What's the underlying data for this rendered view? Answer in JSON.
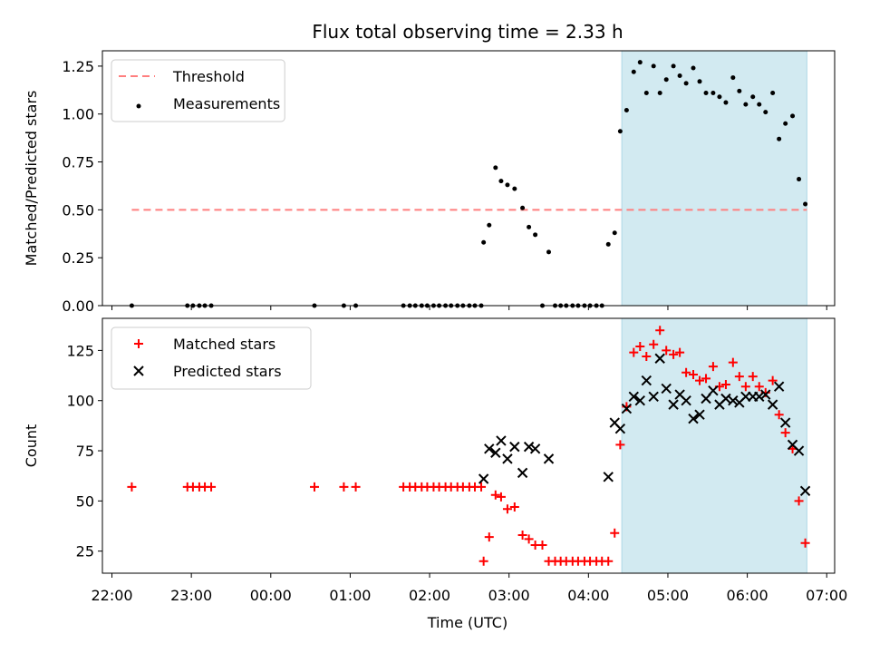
{
  "chart_data": {
    "title": "Flux total observing time = 2.33 h",
    "xlabel": "Time (UTC)",
    "x_unit": "hours relative to 00:00 UTC",
    "xlim": [
      -2.12,
      7.1
    ],
    "x_ticks": [
      {
        "value": -2,
        "label": "22:00"
      },
      {
        "value": -1,
        "label": "23:00"
      },
      {
        "value": 0,
        "label": "00:00"
      },
      {
        "value": 1,
        "label": "01:00"
      },
      {
        "value": 2,
        "label": "02:00"
      },
      {
        "value": 3,
        "label": "03:00"
      },
      {
        "value": 4,
        "label": "04:00"
      },
      {
        "value": 5,
        "label": "05:00"
      },
      {
        "value": 6,
        "label": "06:00"
      },
      {
        "value": 7,
        "label": "07:00"
      }
    ],
    "observing_window": {
      "start": 4.42,
      "end": 6.75,
      "color": "#add8e6"
    },
    "panels": [
      {
        "type": "scatter",
        "ylabel": "Matched/Predicted stars",
        "ylim": [
          0,
          1.33
        ],
        "y_ticks": [
          0.0,
          0.25,
          0.5,
          0.75,
          1.0,
          1.25
        ],
        "y_tick_labels": [
          "0.00",
          "0.25",
          "0.50",
          "0.75",
          "1.00",
          "1.25"
        ],
        "legend_position": "top-left",
        "threshold": {
          "name": "Threshold",
          "value": 0.5,
          "x_range": [
            -1.75,
            6.75
          ],
          "color": "#ff7f7f"
        },
        "series": [
          {
            "name": "Measurements",
            "color": "#000000",
            "points": [
              [
                -1.75,
                0.0
              ],
              [
                -1.05,
                0.0
              ],
              [
                -0.98,
                0.0
              ],
              [
                -0.9,
                0.0
              ],
              [
                -0.83,
                0.0
              ],
              [
                -0.75,
                0.0
              ],
              [
                0.55,
                0.0
              ],
              [
                0.92,
                0.0
              ],
              [
                1.07,
                0.0
              ],
              [
                1.67,
                0.0
              ],
              [
                1.75,
                0.0
              ],
              [
                1.82,
                0.0
              ],
              [
                1.9,
                0.0
              ],
              [
                1.97,
                0.0
              ],
              [
                2.05,
                0.0
              ],
              [
                2.12,
                0.0
              ],
              [
                2.2,
                0.0
              ],
              [
                2.27,
                0.0
              ],
              [
                2.35,
                0.0
              ],
              [
                2.42,
                0.0
              ],
              [
                2.5,
                0.0
              ],
              [
                2.57,
                0.0
              ],
              [
                2.65,
                0.0
              ],
              [
                2.68,
                0.33
              ],
              [
                2.75,
                0.42
              ],
              [
                2.83,
                0.72
              ],
              [
                2.9,
                0.65
              ],
              [
                2.98,
                0.63
              ],
              [
                3.07,
                0.61
              ],
              [
                3.17,
                0.51
              ],
              [
                3.25,
                0.41
              ],
              [
                3.33,
                0.37
              ],
              [
                3.42,
                0.0
              ],
              [
                3.5,
                0.28
              ],
              [
                3.58,
                0.0
              ],
              [
                3.65,
                0.0
              ],
              [
                3.72,
                0.0
              ],
              [
                3.8,
                0.0
              ],
              [
                3.87,
                0.0
              ],
              [
                3.95,
                0.0
              ],
              [
                4.02,
                0.0
              ],
              [
                4.1,
                0.0
              ],
              [
                4.17,
                0.0
              ],
              [
                4.25,
                0.32
              ],
              [
                4.33,
                0.38
              ],
              [
                4.4,
                0.91
              ],
              [
                4.48,
                1.02
              ],
              [
                4.57,
                1.22
              ],
              [
                4.65,
                1.27
              ],
              [
                4.73,
                1.11
              ],
              [
                4.82,
                1.25
              ],
              [
                4.9,
                1.11
              ],
              [
                4.98,
                1.18
              ],
              [
                5.07,
                1.25
              ],
              [
                5.15,
                1.2
              ],
              [
                5.23,
                1.16
              ],
              [
                5.32,
                1.24
              ],
              [
                5.4,
                1.17
              ],
              [
                5.48,
                1.11
              ],
              [
                5.57,
                1.11
              ],
              [
                5.65,
                1.09
              ],
              [
                5.73,
                1.06
              ],
              [
                5.82,
                1.19
              ],
              [
                5.9,
                1.12
              ],
              [
                5.98,
                1.05
              ],
              [
                6.07,
                1.09
              ],
              [
                6.15,
                1.05
              ],
              [
                6.23,
                1.01
              ],
              [
                6.32,
                1.11
              ],
              [
                6.4,
                0.87
              ],
              [
                6.48,
                0.95
              ],
              [
                6.57,
                0.99
              ],
              [
                6.65,
                0.66
              ],
              [
                6.73,
                0.53
              ]
            ]
          }
        ]
      },
      {
        "type": "scatter",
        "ylabel": "Count",
        "ylim": [
          14,
          141
        ],
        "y_ticks": [
          25,
          50,
          75,
          100,
          125
        ],
        "y_tick_labels": [
          "25",
          "50",
          "75",
          "100",
          "125"
        ],
        "legend_position": "top-left",
        "series": [
          {
            "name": "Matched stars",
            "marker": "+",
            "color": "#ff0000",
            "points": [
              [
                -1.75,
                57
              ],
              [
                -1.05,
                57
              ],
              [
                -0.98,
                57
              ],
              [
                -0.9,
                57
              ],
              [
                -0.83,
                57
              ],
              [
                -0.75,
                57
              ],
              [
                0.55,
                57
              ],
              [
                0.92,
                57
              ],
              [
                1.07,
                57
              ],
              [
                1.67,
                57
              ],
              [
                1.75,
                57
              ],
              [
                1.82,
                57
              ],
              [
                1.9,
                57
              ],
              [
                1.97,
                57
              ],
              [
                2.05,
                57
              ],
              [
                2.12,
                57
              ],
              [
                2.2,
                57
              ],
              [
                2.27,
                57
              ],
              [
                2.35,
                57
              ],
              [
                2.42,
                57
              ],
              [
                2.5,
                57
              ],
              [
                2.57,
                57
              ],
              [
                2.65,
                57
              ],
              [
                2.68,
                20
              ],
              [
                2.75,
                32
              ],
              [
                2.83,
                53
              ],
              [
                2.9,
                52
              ],
              [
                2.98,
                46
              ],
              [
                3.07,
                47
              ],
              [
                3.17,
                33
              ],
              [
                3.25,
                31
              ],
              [
                3.33,
                28
              ],
              [
                3.42,
                28
              ],
              [
                3.5,
                20
              ],
              [
                3.58,
                20
              ],
              [
                3.65,
                20
              ],
              [
                3.72,
                20
              ],
              [
                3.8,
                20
              ],
              [
                3.87,
                20
              ],
              [
                3.95,
                20
              ],
              [
                4.02,
                20
              ],
              [
                4.1,
                20
              ],
              [
                4.17,
                20
              ],
              [
                4.25,
                20
              ],
              [
                4.33,
                34
              ],
              [
                4.4,
                78
              ],
              [
                4.48,
                97
              ],
              [
                4.57,
                124
              ],
              [
                4.65,
                127
              ],
              [
                4.73,
                122
              ],
              [
                4.82,
                128
              ],
              [
                4.9,
                135
              ],
              [
                4.98,
                125
              ],
              [
                5.07,
                123
              ],
              [
                5.15,
                124
              ],
              [
                5.23,
                114
              ],
              [
                5.32,
                113
              ],
              [
                5.4,
                110
              ],
              [
                5.48,
                111
              ],
              [
                5.57,
                117
              ],
              [
                5.65,
                107
              ],
              [
                5.73,
                108
              ],
              [
                5.82,
                119
              ],
              [
                5.9,
                112
              ],
              [
                5.98,
                107
              ],
              [
                6.07,
                112
              ],
              [
                6.15,
                107
              ],
              [
                6.23,
                104
              ],
              [
                6.32,
                110
              ],
              [
                6.4,
                93
              ],
              [
                6.48,
                84
              ],
              [
                6.57,
                76
              ],
              [
                6.65,
                50
              ],
              [
                6.73,
                29
              ]
            ]
          },
          {
            "name": "Predicted stars",
            "marker": "x",
            "color": "#000000",
            "points": [
              [
                2.68,
                61
              ],
              [
                2.75,
                76
              ],
              [
                2.83,
                74
              ],
              [
                2.9,
                80
              ],
              [
                2.98,
                71
              ],
              [
                3.07,
                77
              ],
              [
                3.17,
                64
              ],
              [
                3.25,
                77
              ],
              [
                3.33,
                76
              ],
              [
                3.5,
                71
              ],
              [
                4.25,
                62
              ],
              [
                4.33,
                89
              ],
              [
                4.4,
                86
              ],
              [
                4.48,
                96
              ],
              [
                4.57,
                102
              ],
              [
                4.65,
                100
              ],
              [
                4.73,
                110
              ],
              [
                4.82,
                102
              ],
              [
                4.9,
                121
              ],
              [
                4.98,
                106
              ],
              [
                5.07,
                98
              ],
              [
                5.15,
                103
              ],
              [
                5.23,
                100
              ],
              [
                5.32,
                91
              ],
              [
                5.4,
                93
              ],
              [
                5.48,
                101
              ],
              [
                5.57,
                105
              ],
              [
                5.65,
                98
              ],
              [
                5.73,
                101
              ],
              [
                5.82,
                100
              ],
              [
                5.9,
                99
              ],
              [
                5.98,
                102
              ],
              [
                6.07,
                102
              ],
              [
                6.15,
                102
              ],
              [
                6.23,
                103
              ],
              [
                6.32,
                98
              ],
              [
                6.4,
                107
              ],
              [
                6.48,
                89
              ],
              [
                6.57,
                78
              ],
              [
                6.65,
                75
              ],
              [
                6.73,
                55
              ]
            ]
          }
        ]
      }
    ]
  }
}
